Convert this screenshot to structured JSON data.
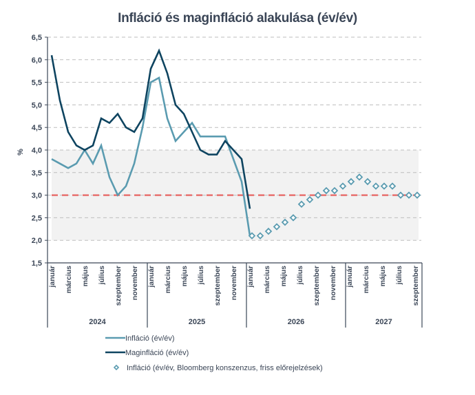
{
  "chart_data": {
    "type": "line",
    "title": "Infláció és maginfláció alakulása (év/év)",
    "ylabel": "%",
    "xlabel": "",
    "ylim": [
      1.5,
      6.5
    ],
    "ytick_step": 0.5,
    "yticks": [
      "1,5",
      "2,0",
      "2,5",
      "3,0",
      "3,5",
      "4,0",
      "4,5",
      "5,0",
      "5,5",
      "6,0",
      "6,5"
    ],
    "grid": true,
    "target_band": {
      "from": 2.0,
      "to": 4.0,
      "color": "#f2f2f2"
    },
    "target_line": {
      "value": 3.0,
      "color": "#e8706e"
    },
    "years": [
      {
        "label": "2024",
        "months": 12
      },
      {
        "label": "2025",
        "months": 12
      },
      {
        "label": "2026",
        "months": 12
      },
      {
        "label": "2027",
        "months": 9
      }
    ],
    "month_tick_labels": [
      "január",
      "",
      "március",
      "",
      "május",
      "",
      "július",
      "",
      "szeptember",
      "",
      "november",
      ""
    ],
    "series": [
      {
        "name": "Infláció (év/év)",
        "style": "line",
        "color": "#5a9bb0",
        "start_index": 0,
        "values": [
          3.8,
          3.7,
          3.6,
          3.7,
          4.0,
          3.7,
          4.1,
          3.4,
          3.0,
          3.2,
          3.7,
          4.5,
          5.5,
          5.6,
          4.7,
          4.2,
          4.4,
          4.6,
          4.3,
          4.3,
          4.3,
          4.3,
          3.8,
          3.3,
          2.1
        ]
      },
      {
        "name": "Maginfláció (év/év)",
        "style": "line",
        "color": "#0e4460",
        "start_index": 0,
        "values": [
          6.1,
          5.1,
          4.4,
          4.1,
          4.0,
          4.1,
          4.7,
          4.6,
          4.8,
          4.5,
          4.4,
          4.7,
          5.8,
          6.2,
          5.7,
          5.0,
          4.8,
          4.4,
          4.0,
          3.9,
          3.9,
          4.2,
          4.0,
          3.8,
          2.7
        ]
      },
      {
        "name": "Infláció (év/év, Bloomberg konszenzus, friss előrejelzések)",
        "style": "marker",
        "color": "#5a9bb0",
        "start_index": 24,
        "values": [
          2.1,
          2.1,
          2.2,
          2.3,
          2.4,
          2.5,
          2.8,
          2.9,
          3.0,
          3.1,
          3.1,
          3.2,
          3.3,
          3.4,
          3.3,
          3.2,
          3.2,
          3.2,
          3.0,
          3.0,
          3.0
        ]
      }
    ],
    "legend": {
      "placement": "bottom-left"
    }
  }
}
